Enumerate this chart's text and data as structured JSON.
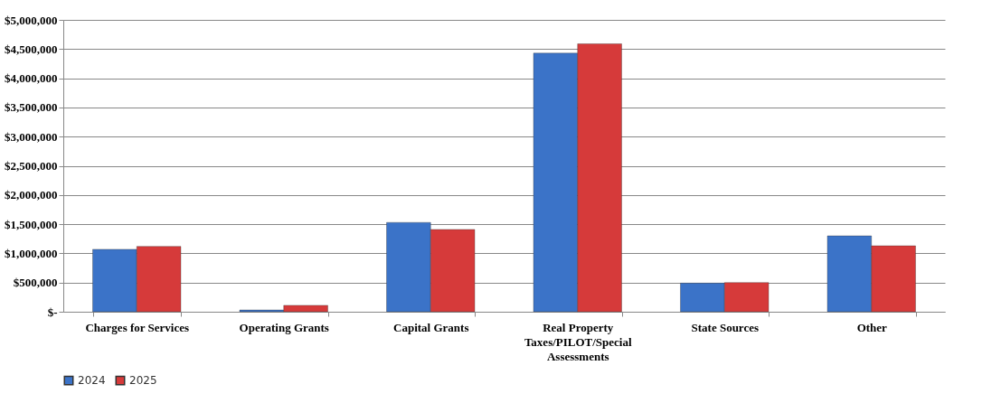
{
  "chart_data": {
    "type": "bar",
    "categories": [
      "Charges for Services",
      "Operating Grants",
      "Capital Grants",
      "Real Property Taxes/PILOT/Special Assessments",
      "State Sources",
      "Other"
    ],
    "series": [
      {
        "name": "2024",
        "color": "#3b73c8",
        "values": [
          1070000,
          30000,
          1530000,
          4430000,
          490000,
          1300000
        ]
      },
      {
        "name": "2025",
        "color": "#d63a3a",
        "values": [
          1120000,
          110000,
          1410000,
          4590000,
          500000,
          1130000
        ]
      }
    ],
    "ylim": [
      0,
      5000000
    ],
    "yticks": [
      {
        "value": 0,
        "label": "$-"
      },
      {
        "value": 500000,
        "label": "$500,000"
      },
      {
        "value": 1000000,
        "label": "$1,000,000"
      },
      {
        "value": 1500000,
        "label": "$1,500,000"
      },
      {
        "value": 2000000,
        "label": "$2,000,000"
      },
      {
        "value": 2500000,
        "label": "$2,500,000"
      },
      {
        "value": 3000000,
        "label": "$3,000,000"
      },
      {
        "value": 3500000,
        "label": "$3,500,000"
      },
      {
        "value": 4000000,
        "label": "$4,000,000"
      },
      {
        "value": 4500000,
        "label": "$4,500,000"
      },
      {
        "value": 5000000,
        "label": "$5,000,000"
      }
    ],
    "grid": "y",
    "legend": "bottom"
  }
}
